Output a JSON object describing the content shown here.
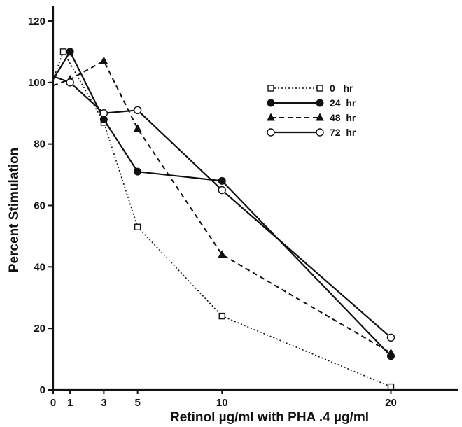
{
  "chart_data": {
    "type": "line",
    "title": "",
    "xlabel": "Retinol µg/ml with PHA .4 µg/ml",
    "ylabel": "Percent  Stimulation",
    "xlim": [
      0,
      24
    ],
    "ylim": [
      0,
      125
    ],
    "xticks": [
      0,
      1,
      3,
      5,
      10,
      20
    ],
    "yticks": [
      0,
      20,
      40,
      60,
      80,
      100,
      120
    ],
    "grid": false,
    "legend_position": "top-right",
    "series": [
      {
        "name": "0   hr",
        "marker": "open-square",
        "line": "dotted",
        "x": [
          0,
          0.6,
          3,
          5,
          10,
          20
        ],
        "y": [
          101,
          110,
          87,
          53,
          24,
          1
        ]
      },
      {
        "name": "24  hr",
        "marker": "filled-circle",
        "line": "solid",
        "x": [
          0,
          1,
          3,
          5,
          10,
          20
        ],
        "y": [
          101,
          110,
          88,
          71,
          68,
          11
        ]
      },
      {
        "name": "48  hr",
        "marker": "filled-triangle",
        "line": "dashed",
        "x": [
          0,
          1,
          3,
          5,
          10,
          20
        ],
        "y": [
          99,
          101,
          107,
          85,
          44,
          12
        ]
      },
      {
        "name": "72  hr",
        "marker": "open-circle",
        "line": "solid",
        "x": [
          0,
          1,
          3,
          5,
          10,
          20
        ],
        "y": [
          102,
          100,
          90,
          91,
          65,
          17
        ]
      }
    ]
  }
}
